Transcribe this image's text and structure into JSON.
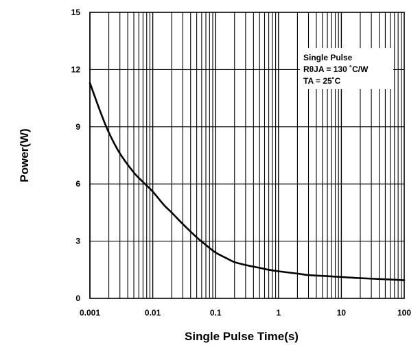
{
  "chart_data": {
    "type": "line",
    "title": "",
    "xlabel": "Single Pulse Time(s)",
    "ylabel": "Power(W)",
    "x_scale": "log",
    "xlim": [
      0.001,
      100
    ],
    "ylim": [
      0,
      15
    ],
    "x_ticks": [
      "0.001",
      "0.01",
      "0.1",
      "1",
      "10",
      "100"
    ],
    "y_ticks": [
      "0",
      "3",
      "6",
      "9",
      "12",
      "15"
    ],
    "grid": true,
    "annotation": {
      "lines": [
        "Single Pulse",
        "RθJA = 130 ˚C/W",
        "TA = 25˚C"
      ],
      "placement": "top-right"
    },
    "series": [
      {
        "color": "#000000",
        "x": [
          0.001,
          0.0015,
          0.002,
          0.003,
          0.005,
          0.007,
          0.01,
          0.015,
          0.02,
          0.03,
          0.05,
          0.07,
          0.1,
          0.15,
          0.2,
          0.3,
          0.5,
          0.7,
          1,
          2,
          3,
          5,
          10,
          20,
          50,
          100
        ],
        "y": [
          11.3,
          9.7,
          8.7,
          7.6,
          6.6,
          6.1,
          5.6,
          4.9,
          4.5,
          3.9,
          3.2,
          2.8,
          2.4,
          2.1,
          1.9,
          1.75,
          1.6,
          1.5,
          1.42,
          1.3,
          1.22,
          1.18,
          1.12,
          1.06,
          1.0,
          0.95
        ]
      }
    ]
  }
}
